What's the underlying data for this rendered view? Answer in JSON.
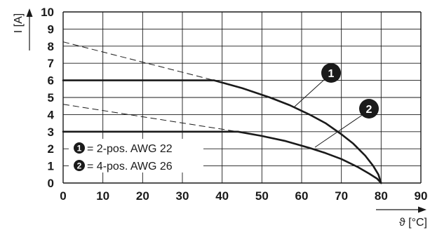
{
  "chart_data": {
    "type": "line",
    "xlabel": "ϑ [°C]",
    "ylabel": "I [A]",
    "xlim": [
      0,
      90
    ],
    "ylim": [
      0,
      10
    ],
    "x_ticks": [
      "0",
      "10",
      "20",
      "30",
      "40",
      "50",
      "60",
      "70",
      "80",
      "90"
    ],
    "y_ticks": [
      "0",
      "1",
      "2",
      "3",
      "4",
      "5",
      "6",
      "7",
      "8",
      "9",
      "10"
    ],
    "grid": true,
    "legend_position": "bottom-left",
    "series": [
      {
        "marker": "1",
        "name": "= 2-pos. AWG 22",
        "x": [
          0,
          38,
          45,
          52,
          57,
          62,
          66,
          70,
          73,
          76,
          78,
          79.3,
          80
        ],
        "y": [
          6,
          6,
          5.55,
          5.0,
          4.55,
          4.0,
          3.5,
          2.85,
          2.3,
          1.6,
          1.0,
          0.5,
          0
        ],
        "extrapolation": {
          "x": [
            0,
            38
          ],
          "y": [
            8.25,
            6
          ]
        }
      },
      {
        "marker": "2",
        "name": "= 4-pos. AWG 26",
        "x": [
          0,
          44,
          50,
          56,
          62,
          66,
          70,
          74,
          77,
          79,
          80
        ],
        "y": [
          3,
          3,
          2.75,
          2.45,
          2.05,
          1.75,
          1.4,
          0.95,
          0.55,
          0.25,
          0
        ],
        "extrapolation": {
          "x": [
            0,
            44
          ],
          "y": [
            4.6,
            3
          ]
        }
      }
    ]
  }
}
